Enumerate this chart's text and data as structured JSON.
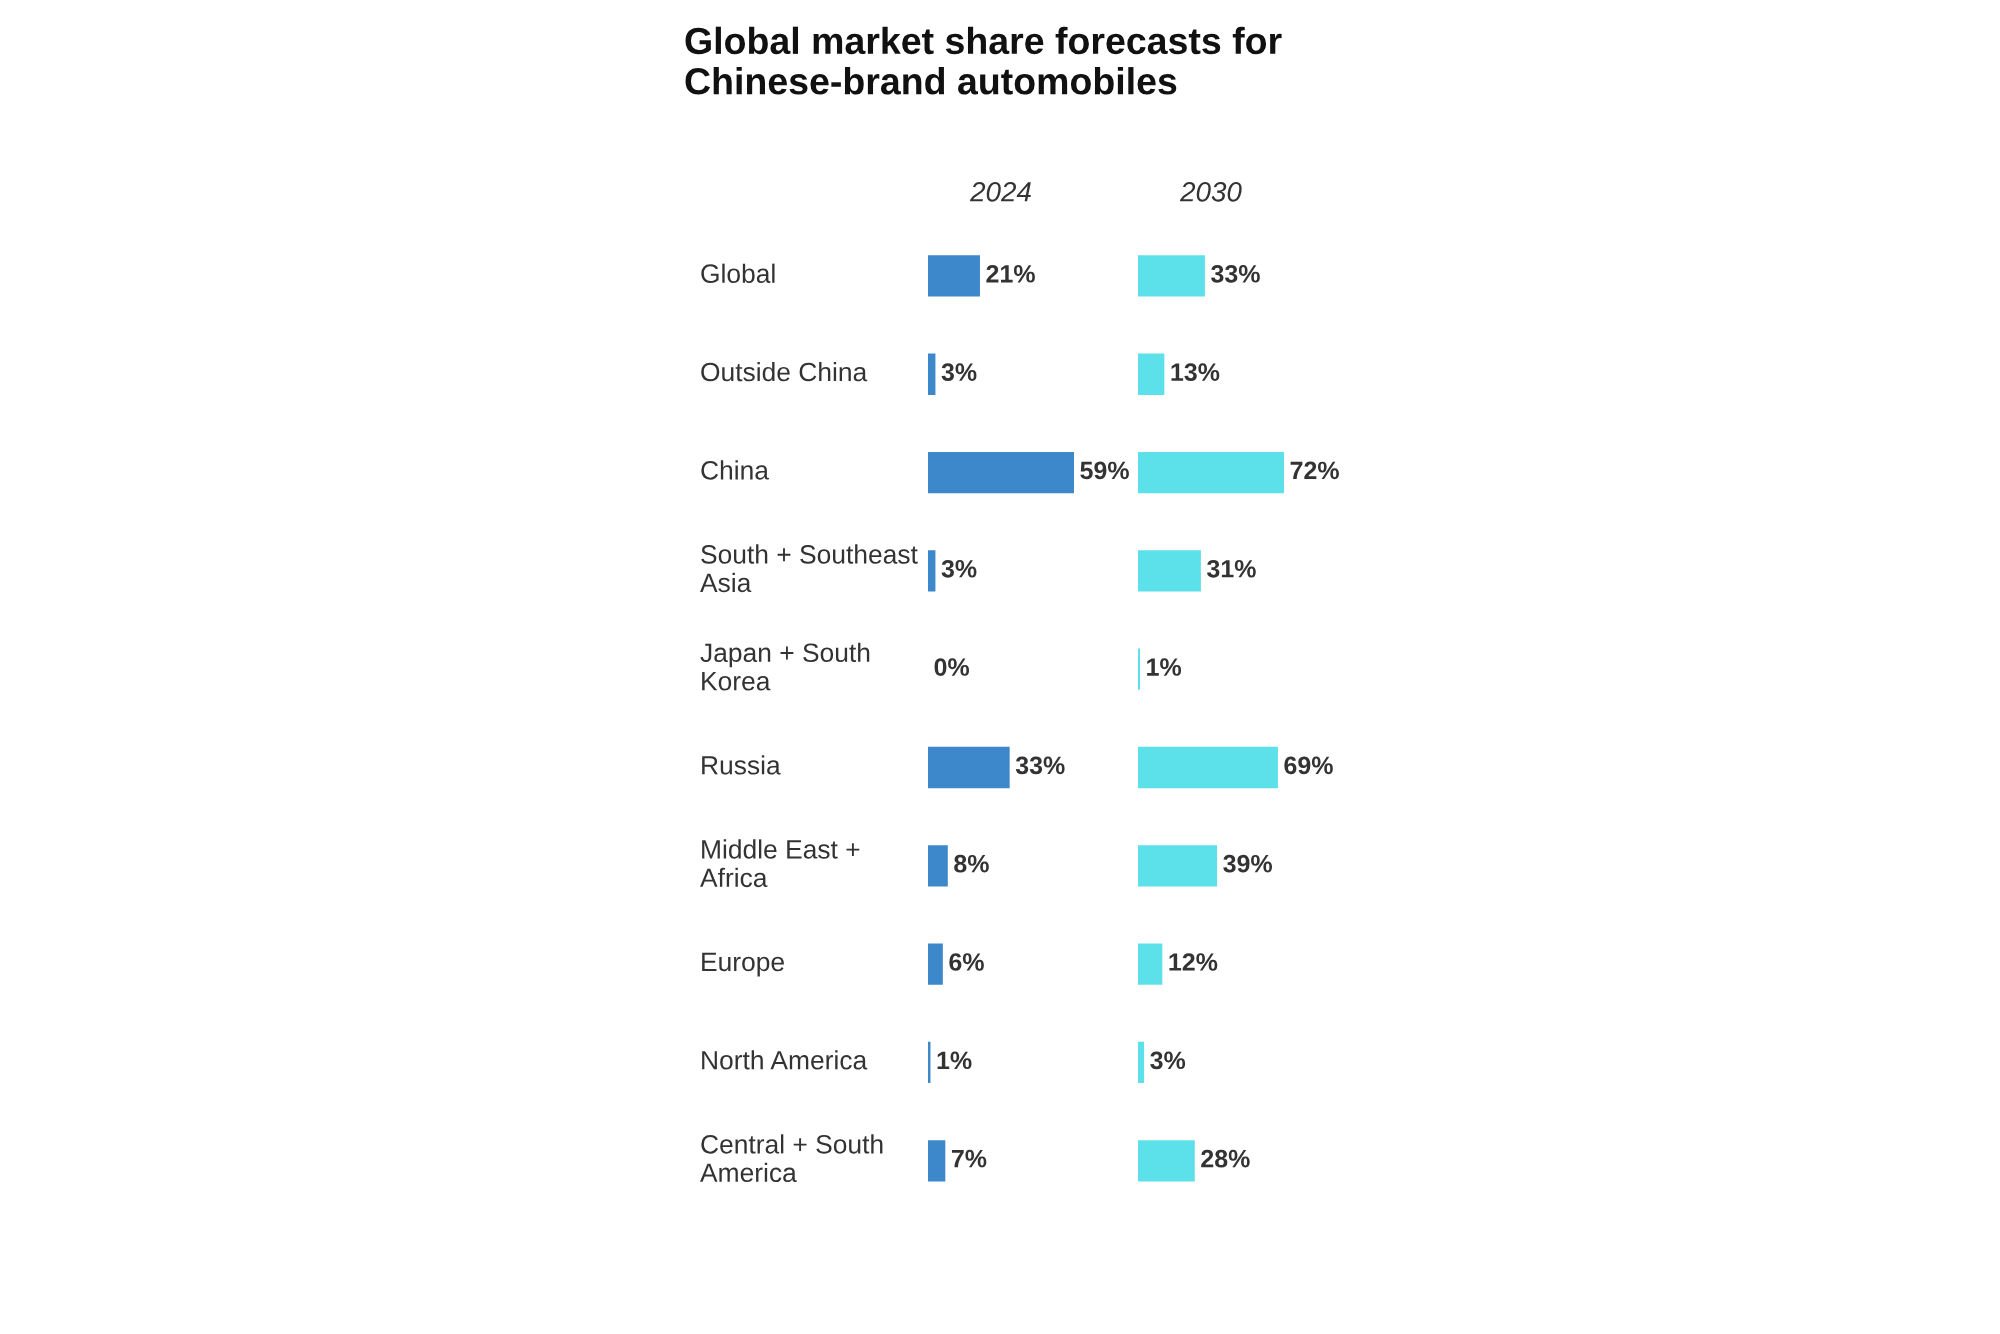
{
  "chart_data": [
    {
      "type": "bar",
      "orientation": "horizontal",
      "title": "Global market share forecasts for Chinese-brand automobiles",
      "categories": [
        "Global",
        "Outside China",
        "China",
        "South + Southeast Asia",
        "Japan + South Korea",
        "Russia",
        "Middle East + Africa",
        "Europe",
        "North America",
        "Central + South America"
      ],
      "series": [
        {
          "name": "2024",
          "color": "#3d87cb",
          "values": [
            21,
            3,
            59,
            3,
            0,
            33,
            8,
            6,
            1,
            7
          ],
          "value_labels": [
            "21%",
            "3%",
            "59%",
            "3%",
            "0%",
            "33%",
            "8%",
            "6%",
            "1%",
            "7%"
          ]
        }
      ],
      "legend": false
    },
    {
      "type": "bar",
      "orientation": "horizontal",
      "series": [
        {
          "name": "2030",
          "color": "#5ce0e9",
          "values": [
            33,
            13,
            72,
            31,
            1,
            69,
            39,
            12,
            3,
            28
          ],
          "value_labels": [
            "33%",
            "13%",
            "72%",
            "31%",
            "1%",
            "69%",
            "39%",
            "12%",
            "3%",
            "28%"
          ]
        }
      ],
      "legend": false
    }
  ]
}
